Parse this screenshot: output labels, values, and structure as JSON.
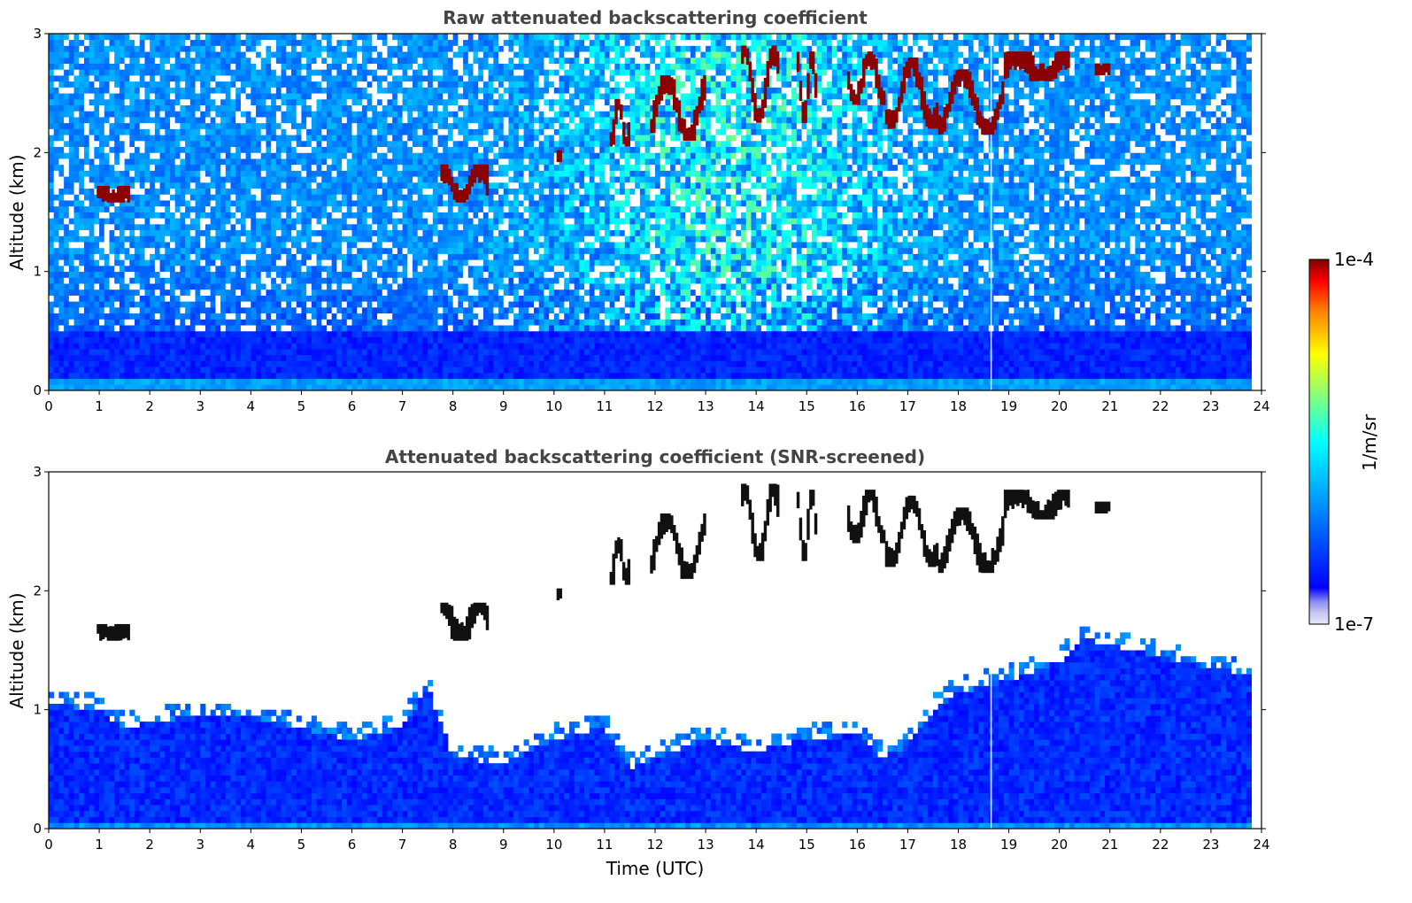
{
  "chart_data": [
    {
      "type": "heatmap",
      "title": "Raw attenuated backscattering coefficient",
      "xlabel": "",
      "ylabel": "Altitude (km)",
      "xlim": [
        0,
        24
      ],
      "ylim": [
        0,
        3
      ],
      "x_ticks": [
        "0",
        "1",
        "2",
        "3",
        "4",
        "5",
        "6",
        "7",
        "8",
        "9",
        "10",
        "11",
        "12",
        "13",
        "14",
        "15",
        "16",
        "17",
        "18",
        "19",
        "20",
        "21",
        "22",
        "23",
        "24"
      ],
      "y_ticks": [
        "0",
        "1",
        "2",
        "3"
      ],
      "data_time_range": [
        0,
        23.8
      ],
      "missing_profile_time": 18.65,
      "cloud_layers": [
        {
          "t": 0.95,
          "t_end": 1.6,
          "base": 1.58,
          "top": 1.72
        },
        {
          "t": 7.75,
          "t_end": 8.7,
          "base": 1.58,
          "top": 1.9
        },
        {
          "t": 10.05,
          "t_end": 10.15,
          "base": 1.92,
          "top": 2.02
        },
        {
          "t": 11.1,
          "t_end": 11.5,
          "base": 2.05,
          "top": 2.45
        },
        {
          "t": 11.9,
          "t_end": 13.0,
          "base": 2.1,
          "top": 2.65
        },
        {
          "t": 13.7,
          "t_end": 14.45,
          "base": 2.25,
          "top": 2.9
        },
        {
          "t": 14.8,
          "t_end": 15.2,
          "base": 2.25,
          "top": 2.85
        },
        {
          "t": 15.8,
          "t_end": 16.55,
          "base": 2.4,
          "top": 2.85
        },
        {
          "t": 16.55,
          "t_end": 17.6,
          "base": 2.2,
          "top": 2.8
        },
        {
          "t": 17.6,
          "t_end": 18.9,
          "base": 2.15,
          "top": 2.7
        },
        {
          "t": 18.9,
          "t_end": 20.2,
          "base": 2.6,
          "top": 2.85
        },
        {
          "t": 20.7,
          "t_end": 21.0,
          "base": 2.65,
          "top": 2.75
        }
      ]
    },
    {
      "type": "heatmap",
      "title": "Attenuated backscattering coefficient (SNR-screened)",
      "xlabel": "Time (UTC)",
      "ylabel": "Altitude (km)",
      "xlim": [
        0,
        24
      ],
      "ylim": [
        0,
        3
      ],
      "x_ticks": [
        "0",
        "1",
        "2",
        "3",
        "4",
        "5",
        "6",
        "7",
        "8",
        "9",
        "10",
        "11",
        "12",
        "13",
        "14",
        "15",
        "16",
        "17",
        "18",
        "19",
        "20",
        "21",
        "22",
        "23",
        "24"
      ],
      "y_ticks": [
        "0",
        "1",
        "2",
        "3"
      ],
      "data_time_range": [
        0,
        23.8
      ],
      "missing_profile_time": 18.65,
      "boundary_layer_top": [
        [
          0,
          1.05
        ],
        [
          1,
          1.0
        ],
        [
          1.5,
          0.85
        ],
        [
          2,
          0.9
        ],
        [
          3,
          0.95
        ],
        [
          4,
          0.95
        ],
        [
          5,
          0.85
        ],
        [
          6,
          0.75
        ],
        [
          7,
          0.85
        ],
        [
          7.5,
          1.2
        ],
        [
          8,
          0.6
        ],
        [
          9,
          0.55
        ],
        [
          10,
          0.75
        ],
        [
          11,
          0.85
        ],
        [
          11.5,
          0.5
        ],
        [
          12,
          0.6
        ],
        [
          13,
          0.75
        ],
        [
          14,
          0.65
        ],
        [
          15,
          0.75
        ],
        [
          16,
          0.8
        ],
        [
          16.5,
          0.6
        ],
        [
          17,
          0.7
        ],
        [
          17.5,
          1.0
        ],
        [
          18,
          1.15
        ],
        [
          19,
          1.25
        ],
        [
          20,
          1.4
        ],
        [
          20.5,
          1.6
        ],
        [
          21,
          1.55
        ],
        [
          22,
          1.45
        ],
        [
          23,
          1.35
        ],
        [
          23.8,
          1.3
        ]
      ]
    }
  ],
  "colorbar": {
    "label": "1/m/sr",
    "max_label": "1e-4",
    "min_label": "1e-7",
    "scale": "log",
    "colormap": "jet",
    "low_colors": [
      "#e8e8f8",
      "#b8b8f0",
      "#8080f0",
      "#0000ff"
    ],
    "high_color": "#800000"
  }
}
